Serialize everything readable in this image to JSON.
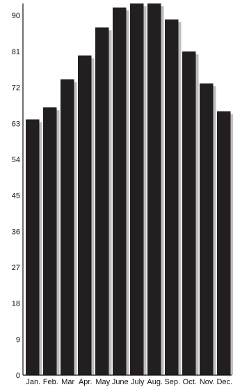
{
  "chart_data": {
    "type": "bar",
    "categories": [
      "Jan.",
      "Feb.",
      "Mar",
      "Apr.",
      "May",
      "June",
      "July",
      "Aug.",
      "Sep.",
      "Oct.",
      "Nov.",
      "Dec."
    ],
    "series": [
      {
        "values": [
          64,
          67,
          74,
          80,
          87,
          92,
          93,
          93,
          89,
          81,
          73,
          66
        ]
      }
    ],
    "yticks": [
      0,
      9,
      18,
      27,
      36,
      45,
      54,
      63,
      72,
      81,
      90
    ],
    "ylim": [
      0,
      93
    ],
    "grid": false,
    "legend": "none",
    "colors": {
      "bar": "#231f20",
      "shadow": "#bdbdbd",
      "axis": "#111111",
      "text": "#111111"
    }
  }
}
